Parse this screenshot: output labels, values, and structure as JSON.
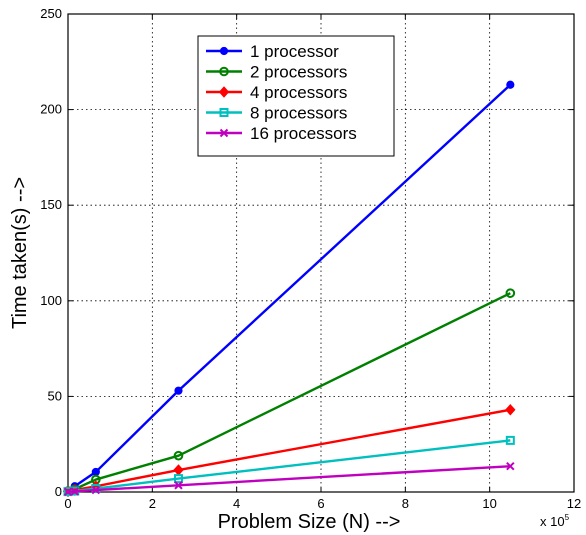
{
  "chart_data": {
    "type": "line",
    "title": "",
    "xlabel": "Problem Size (N) -->",
    "ylabel": "Time taken(s) -->",
    "x_multiplier": "x 10",
    "x_multiplier_exp": "5",
    "xlim": [
      0,
      12
    ],
    "ylim": [
      0,
      250
    ],
    "xticks": [
      0,
      2,
      4,
      6,
      8,
      10,
      12
    ],
    "yticks": [
      0,
      50,
      100,
      150,
      200,
      250
    ],
    "grid": true,
    "legend_position": "top-center",
    "series": [
      {
        "name": "1 processor",
        "color": "#0000ff",
        "marker": "dot",
        "x": [
          0,
          0.16,
          0.66,
          2.62,
          10.49
        ],
        "y": [
          0.5,
          3,
          10.5,
          53,
          213
        ]
      },
      {
        "name": "2 processors",
        "color": "#008000",
        "marker": "circle",
        "x": [
          0,
          0.16,
          0.66,
          2.62,
          10.49
        ],
        "y": [
          0.5,
          1.5,
          6.5,
          19,
          104
        ]
      },
      {
        "name": "4 processors",
        "color": "#ff0000",
        "marker": "diamond",
        "x": [
          0,
          0.16,
          0.66,
          2.62,
          10.49
        ],
        "y": [
          0.3,
          1,
          3,
          11.5,
          43
        ]
      },
      {
        "name": "8 processors",
        "color": "#00bfbf",
        "marker": "square",
        "x": [
          0,
          0.16,
          0.66,
          2.62,
          10.49
        ],
        "y": [
          0.2,
          0.5,
          1.8,
          7,
          27
        ]
      },
      {
        "name": "16 processors",
        "color": "#bf00bf",
        "marker": "x",
        "x": [
          0,
          0.16,
          0.66,
          2.62,
          10.49
        ],
        "y": [
          0.1,
          0.3,
          1,
          3.5,
          13.5
        ]
      }
    ]
  }
}
